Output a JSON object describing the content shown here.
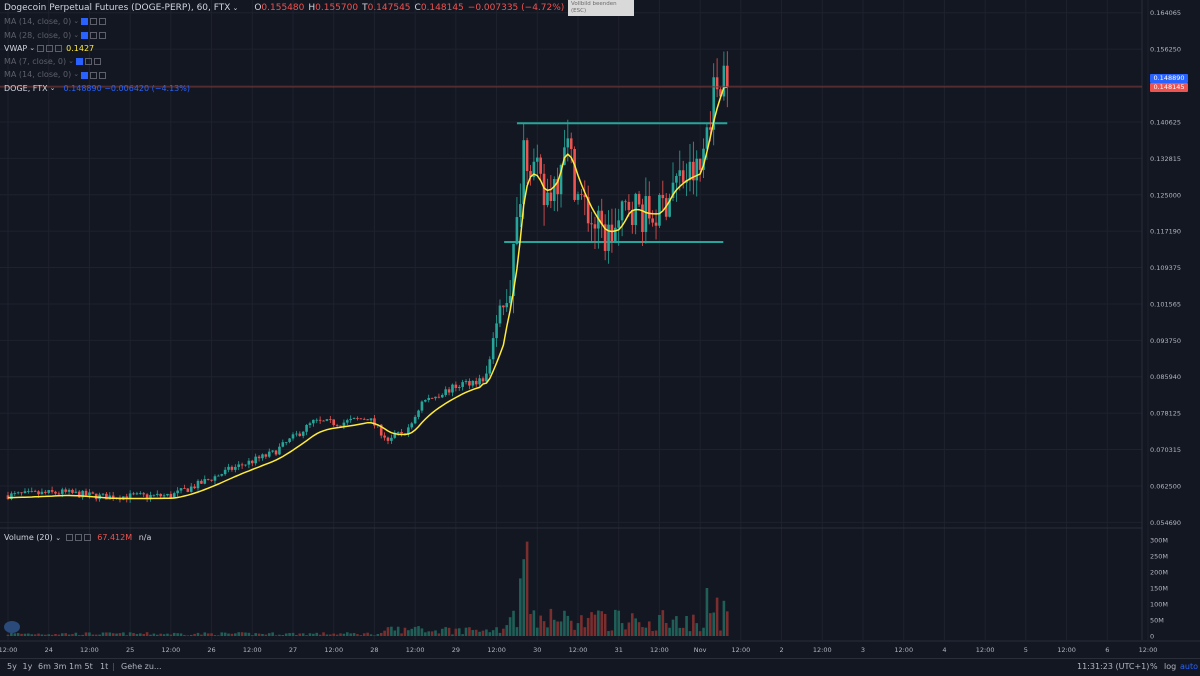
{
  "legend": {
    "symbol_title": "Dogecoin Perpetual Futures (DOGE-PERP), 60, FTX",
    "ohlc": [
      {
        "k": "O",
        "v": "0.155480"
      },
      {
        "k": "H",
        "v": "0.155700"
      },
      {
        "k": "T",
        "v": "0.147545"
      },
      {
        "k": "C",
        "v": "0.148145"
      },
      {
        "k": "",
        "v": "−0.007335 (−4.72%)"
      }
    ],
    "indicators": [
      {
        "name": "MA (14, close, 0)",
        "value": "",
        "dim": true
      },
      {
        "name": "MA (28, close, 0)",
        "value": "",
        "dim": true
      },
      {
        "name": "VWAP",
        "value": "0.1427",
        "dim": false
      },
      {
        "name": "MA (7, close, 0)",
        "value": "",
        "dim": true
      },
      {
        "name": "MA (14, close, 0)",
        "value": "",
        "dim": true
      }
    ],
    "compare": {
      "name": "DOGE, FTX",
      "value": "0.148890  −0.006420 (−4.13%)"
    }
  },
  "volume_legend": {
    "name": "Volume (20)",
    "value": "67.412M",
    "na": "n/a"
  },
  "exit_fullscreen": {
    "line1": "Vollbild beenden",
    "line2": "(ESC)"
  },
  "bottom_bar": {
    "ranges": [
      "5y",
      "1y",
      "6m",
      "3m",
      "1m",
      "5t",
      "1t"
    ],
    "goto": "Gehe zu...",
    "clock": "11:31:23 (UTC+1)",
    "percent": "%",
    "log": "log",
    "auto": "auto"
  },
  "price_tags": {
    "compare": "0.148890",
    "last": "0.148145"
  },
  "colors": {
    "bg": "#131722",
    "grid": "#1e222d",
    "up": "#26a69a",
    "down": "#ef5350",
    "vwap": "#ffeb3b",
    "level": "#26a69a",
    "accent": "#2962ff",
    "last": "#ef5350"
  },
  "chart_data": {
    "type": "candlestick",
    "title": "Dogecoin Perpetual Futures (DOGE-PERP), 60, FTX",
    "y_ticks": [
      "0.164065",
      "0.156250",
      "0.148440",
      "0.140625",
      "0.132815",
      "0.125000",
      "0.117190",
      "0.109375",
      "0.101565",
      "0.093750",
      "0.085940",
      "0.078125",
      "0.070315",
      "0.062500",
      "0.054690"
    ],
    "ylim": [
      0.0509,
      0.1668
    ],
    "x_ticks": [
      {
        "label": "12:00",
        "t": 0
      },
      {
        "label": "24",
        "t": 12
      },
      {
        "label": "12:00",
        "t": 24
      },
      {
        "label": "25",
        "t": 36
      },
      {
        "label": "12:00",
        "t": 48
      },
      {
        "label": "26",
        "t": 60
      },
      {
        "label": "12:00",
        "t": 72
      },
      {
        "label": "27",
        "t": 84
      },
      {
        "label": "12:00",
        "t": 96
      },
      {
        "label": "28",
        "t": 108
      },
      {
        "label": "12:00",
        "t": 120
      },
      {
        "label": "29",
        "t": 132
      },
      {
        "label": "12:00",
        "t": 144
      },
      {
        "label": "30",
        "t": 156
      },
      {
        "label": "12:00",
        "t": 168
      },
      {
        "label": "31",
        "t": 180
      },
      {
        "label": "12:00",
        "t": 192
      },
      {
        "label": "Nov",
        "t": 204
      },
      {
        "label": "12:00",
        "t": 216
      },
      {
        "label": "2",
        "t": 228
      },
      {
        "label": "12:00",
        "t": 240
      },
      {
        "label": "3",
        "t": 252
      },
      {
        "label": "12:00",
        "t": 264
      },
      {
        "label": "4",
        "t": 276
      },
      {
        "label": "12:00",
        "t": 288
      },
      {
        "label": "5",
        "t": 300
      },
      {
        "label": "12:00",
        "t": 312
      },
      {
        "label": "6",
        "t": 324
      },
      {
        "label": "12:00",
        "t": 336
      }
    ],
    "key_prices": [
      {
        "t": 0,
        "p": 0.0605
      },
      {
        "t": 16,
        "p": 0.0611
      },
      {
        "t": 28,
        "p": 0.0602
      },
      {
        "t": 48,
        "p": 0.0604
      },
      {
        "t": 56,
        "p": 0.0628
      },
      {
        "t": 66,
        "p": 0.0662
      },
      {
        "t": 78,
        "p": 0.0695
      },
      {
        "t": 90,
        "p": 0.0762
      },
      {
        "t": 98,
        "p": 0.076
      },
      {
        "t": 106,
        "p": 0.0772
      },
      {
        "t": 112,
        "p": 0.0725
      },
      {
        "t": 118,
        "p": 0.0745
      },
      {
        "t": 122,
        "p": 0.0805
      },
      {
        "t": 134,
        "p": 0.0845
      },
      {
        "t": 141,
        "p": 0.0855
      },
      {
        "t": 143,
        "p": 0.0945
      },
      {
        "t": 148,
        "p": 0.1065
      },
      {
        "t": 150,
        "p": 0.1178
      },
      {
        "t": 152,
        "p": 0.1365
      },
      {
        "t": 156,
        "p": 0.1285
      },
      {
        "t": 158,
        "p": 0.1235
      },
      {
        "t": 162,
        "p": 0.1295
      },
      {
        "t": 164,
        "p": 0.1385
      },
      {
        "t": 168,
        "p": 0.125
      },
      {
        "t": 172,
        "p": 0.1195
      },
      {
        "t": 176,
        "p": 0.1158
      },
      {
        "t": 180,
        "p": 0.118
      },
      {
        "t": 183,
        "p": 0.1235
      },
      {
        "t": 188,
        "p": 0.1205
      },
      {
        "t": 192,
        "p": 0.121
      },
      {
        "t": 196,
        "p": 0.1275
      },
      {
        "t": 200,
        "p": 0.129
      },
      {
        "t": 204,
        "p": 0.13
      },
      {
        "t": 206,
        "p": 0.1395
      },
      {
        "t": 208,
        "p": 0.147
      },
      {
        "t": 211,
        "p": 0.152
      },
      {
        "t": 212,
        "p": 0.1481
      }
    ],
    "resistance": {
      "price": 0.14035,
      "t_start": 150,
      "t_end": 212
    },
    "support": {
      "price": 0.11485,
      "t_start": 148,
      "t_end": 212
    },
    "last_price": 0.148145,
    "vwap_value": 0.1427,
    "volume_ticks": [
      "300M",
      "250M",
      "200M",
      "150M",
      "100M",
      "50M",
      "0"
    ],
    "volume_max": 300,
    "volume_peak": {
      "t": 153,
      "value": 295
    }
  }
}
